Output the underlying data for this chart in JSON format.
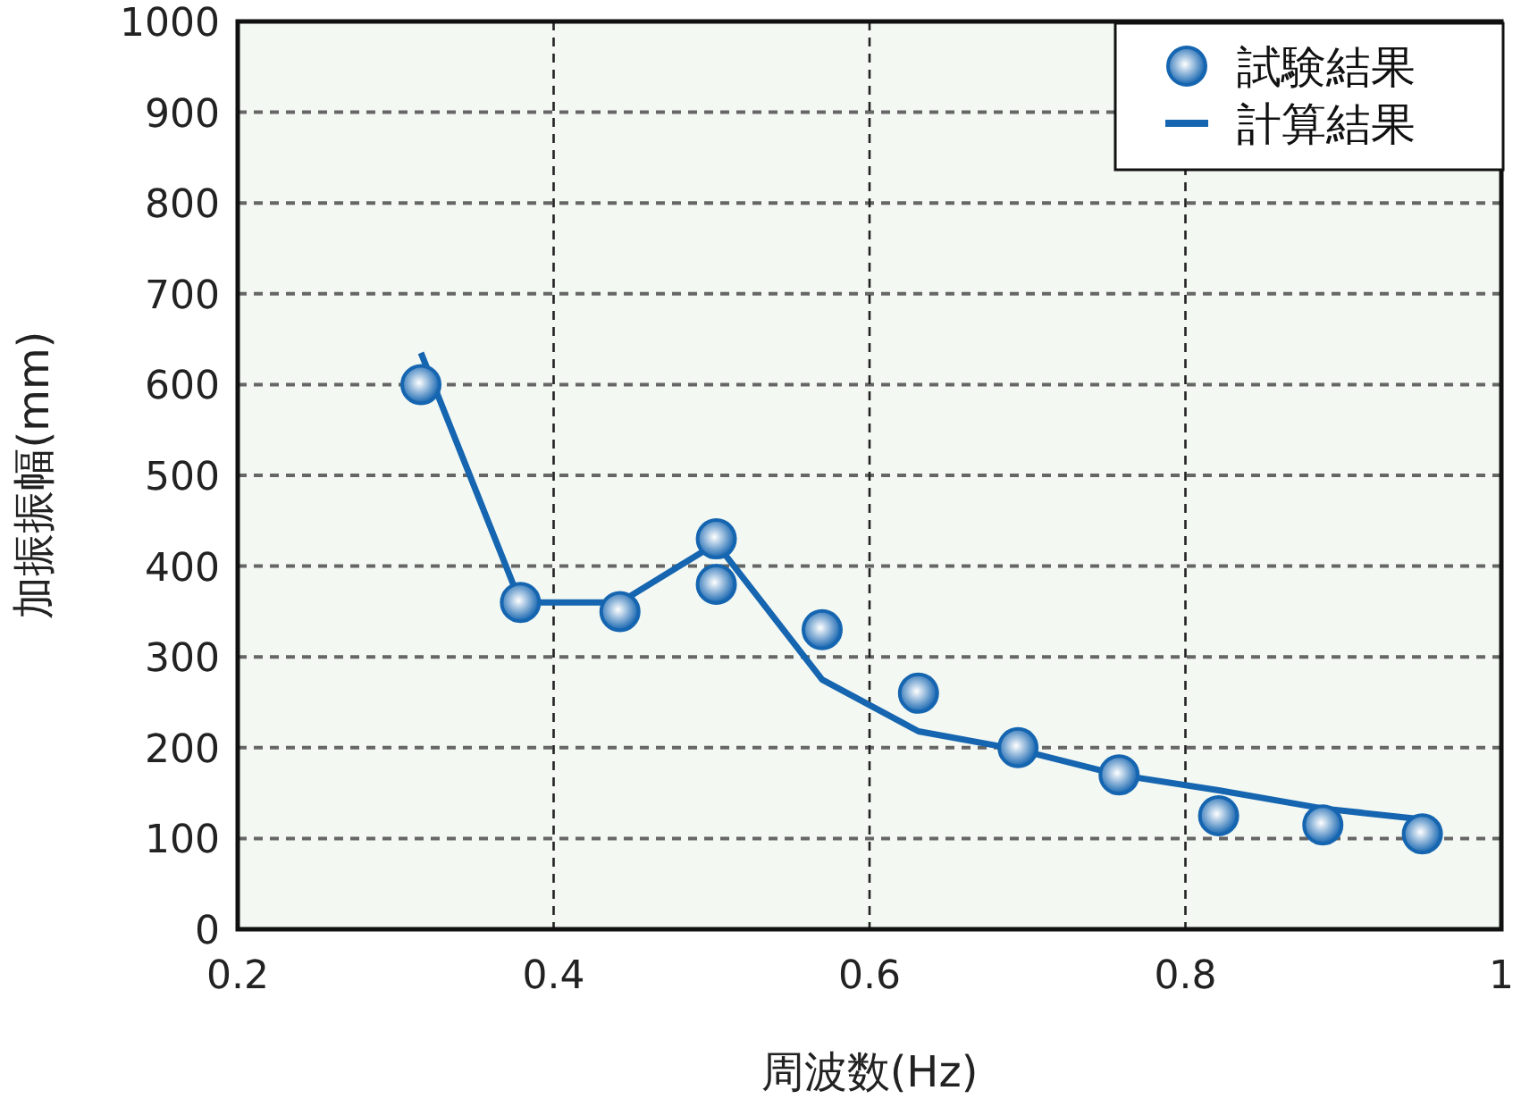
{
  "chart_data": {
    "type": "scatter",
    "xlabel": "周波数(Hz)",
    "ylabel": "加振振幅(mm)",
    "xlim": [
      0.2,
      1
    ],
    "xticks": [
      0.2,
      0.4,
      0.6,
      0.8,
      1
    ],
    "ylim": [
      0,
      1000
    ],
    "yticks": [
      0,
      100,
      200,
      300,
      400,
      500,
      600,
      700,
      800,
      900,
      1000
    ],
    "grid": true,
    "legend": "top right",
    "marker": "circle",
    "series": [
      {
        "name": "試験結果",
        "color": "#1565b0",
        "x": [
          0.316,
          0.379,
          0.442,
          0.503,
          0.503,
          0.57,
          0.631,
          0.694,
          0.758,
          0.821,
          0.887,
          0.95
        ],
        "values": [
          600,
          360,
          350,
          430,
          380,
          330,
          260,
          200,
          170,
          125,
          115,
          105
        ]
      },
      {
        "name": "計算結果",
        "type": "line",
        "marker": "none",
        "line_style": "solid",
        "color": "#1565b0",
        "x": [
          0.316,
          0.379,
          0.442,
          0.503,
          0.57,
          0.631,
          0.694,
          0.758,
          0.821,
          0.887,
          0.95
        ],
        "values": [
          635,
          360,
          360,
          425,
          275,
          218,
          198,
          170,
          153,
          133,
          121
        ]
      }
    ]
  }
}
